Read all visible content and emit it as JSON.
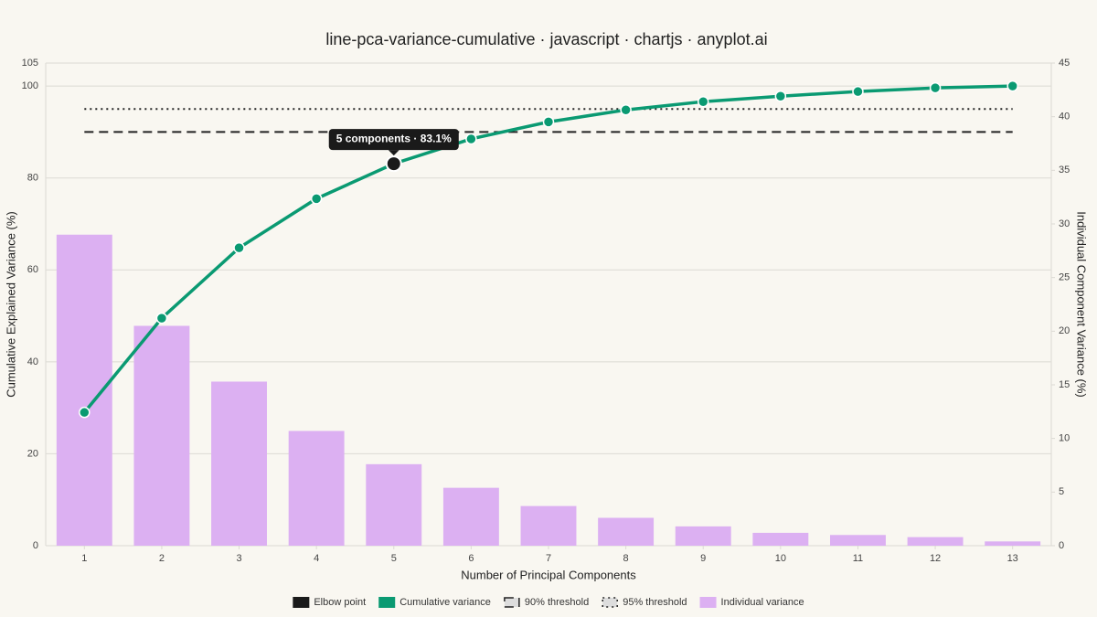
{
  "chart_data": {
    "type": "pareto",
    "title": "line-pca-variance-cumulative · javascript · chartjs · anyplot.ai",
    "x_label": "Number of Principal Components",
    "y_label": "Cumulative Explained Variance (%)",
    "y2_label": "Individual Component Variance (%)",
    "categories": [
      1,
      2,
      3,
      4,
      5,
      6,
      7,
      8,
      9,
      10,
      11,
      12,
      13
    ],
    "series": [
      {
        "name": "Cumulative variance",
        "type": "line",
        "color": "#0a9a72",
        "values": [
          29.0,
          49.5,
          64.8,
          75.5,
          83.1,
          88.5,
          92.2,
          94.8,
          96.6,
          97.8,
          98.8,
          99.6,
          100.0
        ]
      },
      {
        "name": "Individual variance",
        "type": "bar",
        "axis": "y2",
        "color": "#dcb0f2",
        "values": [
          29.0,
          20.5,
          15.3,
          10.7,
          7.6,
          5.4,
          3.7,
          2.6,
          1.8,
          1.2,
          1.0,
          0.8,
          0.4
        ]
      }
    ],
    "thresholds": [
      {
        "name": "90% threshold",
        "value": 90,
        "style": "dashed",
        "color": "#222222"
      },
      {
        "name": "95% threshold",
        "value": 95,
        "style": "dotted",
        "color": "#222222"
      }
    ],
    "elbow": {
      "name": "Elbow point",
      "category": 5,
      "value": 83.1,
      "label": "5 components · 83.1%",
      "color": "#1a1a1a"
    },
    "ylim": [
      0,
      105
    ],
    "yticks": [
      0,
      20,
      40,
      60,
      80,
      100,
      105
    ],
    "y2lim": [
      0,
      45
    ],
    "y2ticks": [
      0,
      5,
      10,
      15,
      20,
      25,
      30,
      35,
      40,
      45
    ],
    "grid": true
  }
}
